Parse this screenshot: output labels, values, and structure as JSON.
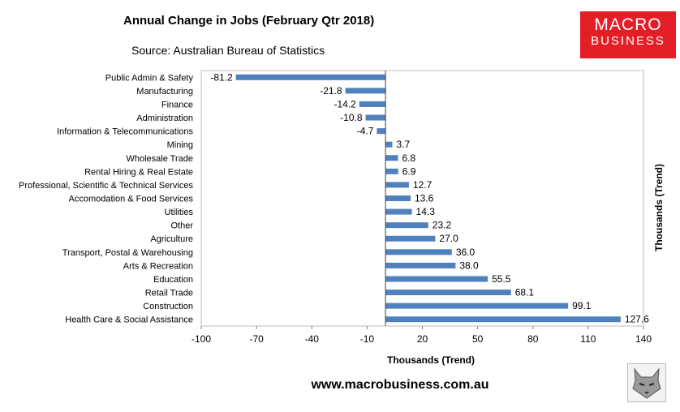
{
  "chart_data": {
    "type": "bar",
    "orientation": "horizontal",
    "title": "Annual Change in Jobs (February Qtr 2018)",
    "subtitle": "Source: Australian Bureau of Statistics",
    "xlabel": "Thousands (Trend)",
    "ylabel_right": "Thousands (Trend)",
    "xlim": [
      -100,
      140
    ],
    "x_ticks": [
      "-100",
      "-70",
      "-40",
      "-10",
      "20",
      "50",
      "80",
      "110",
      "140"
    ],
    "grid": false,
    "bar_color": "#4f81bd",
    "categories": [
      "Public Admin & Safety",
      "Manufacturing",
      "Finance",
      "Administration",
      "Information & Telecommunications",
      "Mining",
      "Wholesale Trade",
      "Rental Hiring & Real Estate",
      "Professional, Scientific & Technical Services",
      "Accomodation & Food Services",
      "Utilities",
      "Other",
      "Agriculture",
      "Transport, Postal & Warehousing",
      "Arts & Recreation",
      "Education",
      "Retail Trade",
      "Construction",
      "Health Care & Social Assistance"
    ],
    "values": [
      -81.2,
      -21.8,
      -14.2,
      -10.8,
      -4.7,
      3.7,
      6.8,
      6.9,
      12.7,
      13.6,
      14.3,
      23.2,
      27.0,
      36.0,
      38.0,
      55.5,
      68.1,
      99.1,
      127.6
    ],
    "value_labels": [
      "-81.2",
      "-21.8",
      "-14.2",
      "-10.8",
      "-4.7",
      "3.7",
      "6.8",
      "6.9",
      "12.7",
      "13.6",
      "14.3",
      "23.2",
      "27.0",
      "36.0",
      "38.0",
      "55.5",
      "68.1",
      "99.1",
      "127.6"
    ]
  },
  "logo": {
    "line1": "MACRO",
    "line2": "BUSINESS",
    "color": "#e41e26"
  },
  "footer": {
    "url": "www.macrobusiness.com.au"
  }
}
